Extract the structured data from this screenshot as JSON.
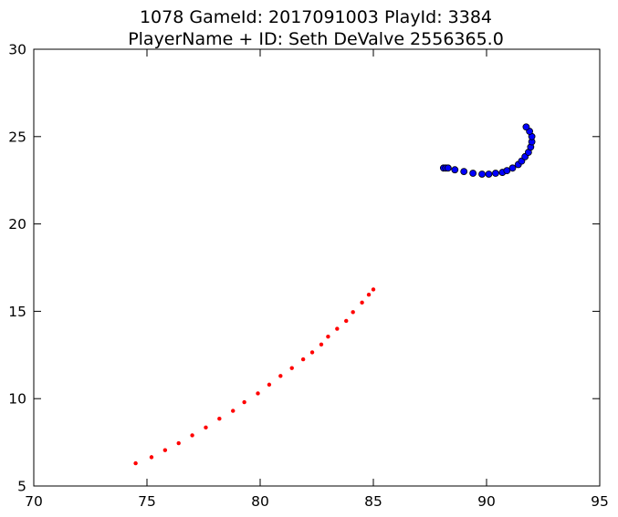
{
  "chart_data": {
    "type": "scatter",
    "title_lines": [
      "1078 GameId: 2017091003 PlayId: 3384",
      "PlayerName + ID: Seth DeValve 2556365.0"
    ],
    "xlabel": "",
    "ylabel": "",
    "xlim": [
      70,
      95
    ],
    "ylim": [
      5,
      30
    ],
    "xticks": [
      70,
      75,
      80,
      85,
      90,
      95
    ],
    "yticks": [
      5,
      10,
      15,
      20,
      25,
      30
    ],
    "grid": false,
    "series": [
      {
        "marker": "small-dot",
        "color": "#ff0000",
        "points": [
          [
            74.5,
            6.3
          ],
          [
            75.2,
            6.65
          ],
          [
            75.8,
            7.05
          ],
          [
            76.4,
            7.45
          ],
          [
            77.0,
            7.9
          ],
          [
            77.6,
            8.35
          ],
          [
            78.2,
            8.85
          ],
          [
            78.8,
            9.3
          ],
          [
            79.3,
            9.8
          ],
          [
            79.9,
            10.3
          ],
          [
            80.4,
            10.8
          ],
          [
            80.9,
            11.3
          ],
          [
            81.4,
            11.75
          ],
          [
            81.9,
            12.25
          ],
          [
            82.3,
            12.65
          ],
          [
            82.7,
            13.1
          ],
          [
            83.0,
            13.55
          ],
          [
            83.4,
            14.0
          ],
          [
            83.8,
            14.45
          ],
          [
            84.1,
            14.95
          ],
          [
            84.5,
            15.5
          ],
          [
            84.8,
            15.95
          ],
          [
            85.0,
            16.25
          ]
        ]
      },
      {
        "marker": "circle",
        "color": "#0000ff",
        "edge_color": "#000000",
        "points": [
          [
            88.1,
            23.2
          ],
          [
            88.2,
            23.2
          ],
          [
            88.3,
            23.2
          ],
          [
            88.6,
            23.1
          ],
          [
            89.0,
            23.0
          ],
          [
            89.4,
            22.9
          ],
          [
            89.8,
            22.85
          ],
          [
            90.1,
            22.85
          ],
          [
            90.4,
            22.9
          ],
          [
            90.7,
            22.95
          ],
          [
            90.9,
            23.05
          ],
          [
            91.15,
            23.2
          ],
          [
            91.4,
            23.4
          ],
          [
            91.55,
            23.6
          ],
          [
            91.7,
            23.85
          ],
          [
            91.85,
            24.1
          ],
          [
            91.95,
            24.4
          ],
          [
            92.0,
            24.7
          ],
          [
            92.0,
            25.0
          ],
          [
            91.9,
            25.3
          ],
          [
            91.75,
            25.55
          ]
        ]
      }
    ]
  }
}
